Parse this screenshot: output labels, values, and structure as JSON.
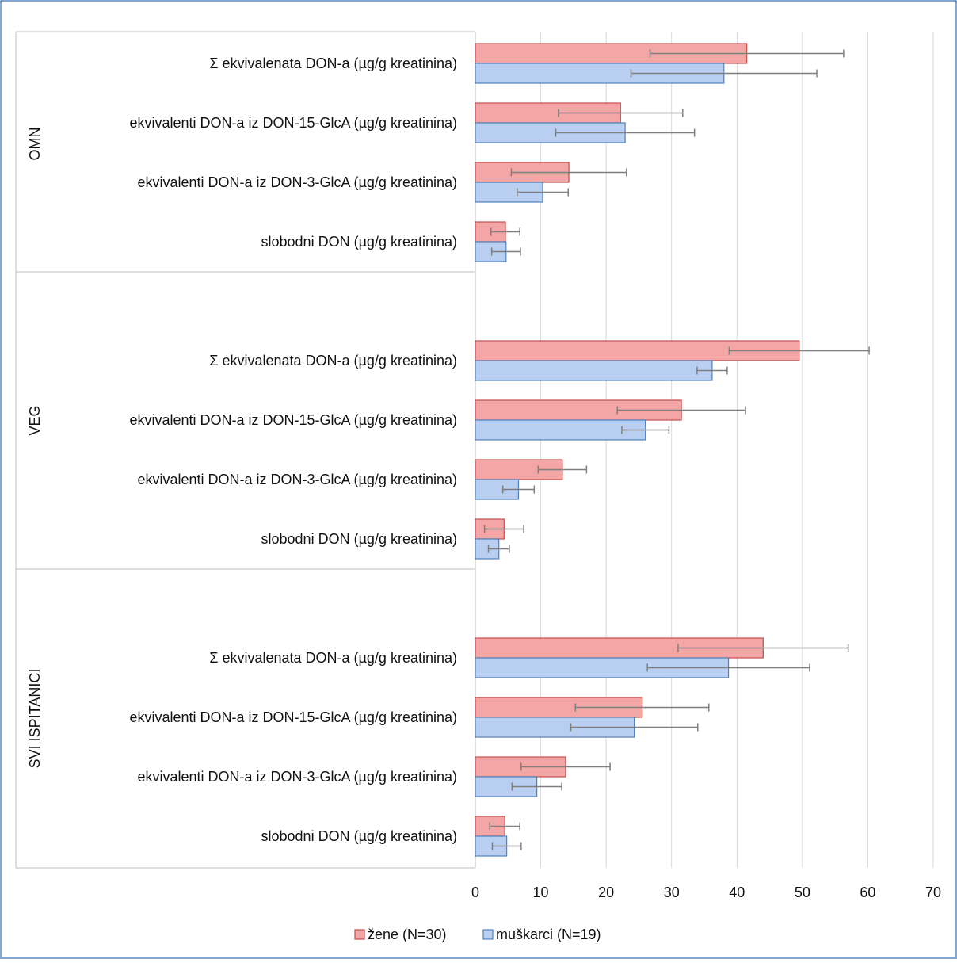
{
  "chart_data": {
    "type": "bar",
    "orientation": "horizontal",
    "xlim": [
      0,
      70
    ],
    "xticks": [
      0,
      10,
      20,
      30,
      40,
      50,
      60,
      70
    ],
    "grid": "vertical",
    "legend_position": "bottom",
    "categories": [
      "Σ ekvivalenata DON-a (µg/g kreatinina)",
      "ekvivalenti DON-a iz DON-15-GlcA (µg/g kreatinina)",
      "ekvivalenti DON-a iz DON-3-GlcA (µg/g kreatinina)",
      "slobodni DON (µg/g kreatinina)"
    ],
    "groups": [
      {
        "label": "OMN",
        "zene": {
          "values": [
            41.5,
            22.2,
            14.3,
            4.6
          ],
          "err": [
            14.8,
            9.5,
            8.8,
            2.2
          ]
        },
        "muskarci": {
          "values": [
            38.0,
            22.9,
            10.3,
            4.7
          ],
          "err": [
            14.2,
            10.6,
            3.9,
            2.2
          ]
        }
      },
      {
        "label": "VEG",
        "zene": {
          "values": [
            49.5,
            31.5,
            13.3,
            4.4
          ],
          "err": [
            10.7,
            9.8,
            3.7,
            3.0
          ]
        },
        "muskarci": {
          "values": [
            36.2,
            26.0,
            6.6,
            3.6
          ],
          "err": [
            2.3,
            3.6,
            2.4,
            1.6
          ]
        }
      },
      {
        "label": "SVI ISPITANICI",
        "zene": {
          "values": [
            44.0,
            25.5,
            13.8,
            4.5
          ],
          "err": [
            13.0,
            10.2,
            6.8,
            2.3
          ]
        },
        "muskarci": {
          "values": [
            38.7,
            24.3,
            9.4,
            4.8
          ],
          "err": [
            12.4,
            9.7,
            3.8,
            2.2
          ]
        }
      }
    ],
    "series": [
      {
        "key": "zene",
        "name": "žene (N=30)",
        "color": "#f4a6a6",
        "stroke": "#c0504d"
      },
      {
        "key": "muskarci",
        "name": "muškarci (N=19)",
        "color": "#b9cff2",
        "stroke": "#4f81bd"
      }
    ]
  }
}
